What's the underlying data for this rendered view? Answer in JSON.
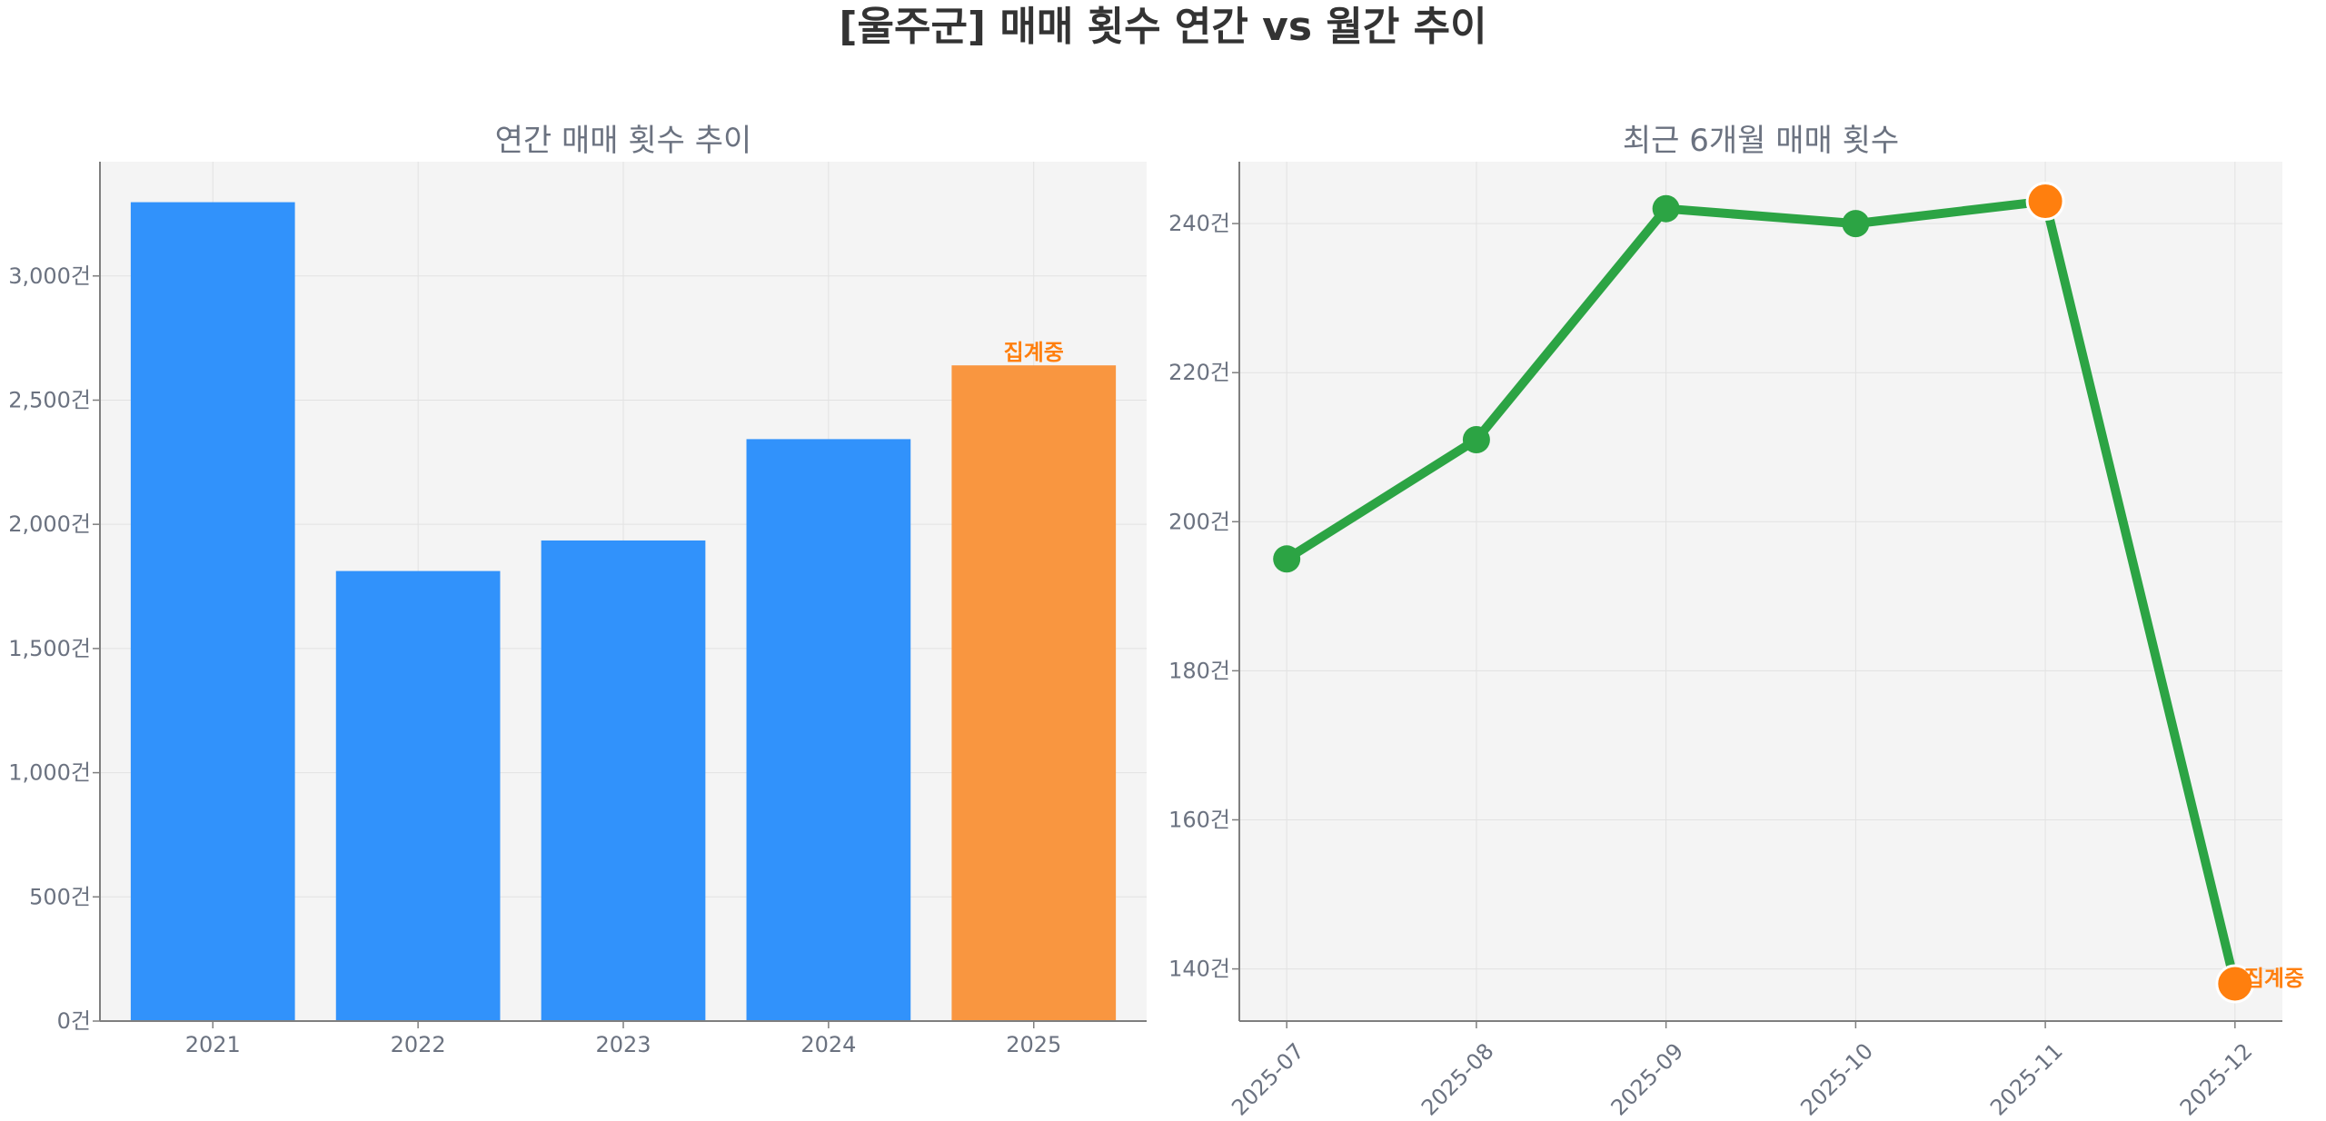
{
  "title": "[울주군] 매매 횟수 연간 vs 월간 추이",
  "colors": {
    "bar": "#3192fb",
    "bar_highlight": "#f99640",
    "line": "#2ca444",
    "marker_highlight": "#ff7f0e",
    "annotation": "#ff7f0e",
    "plot_bg": "#f4f4f4",
    "grid": "#e2e2e2",
    "axis": "#7f7f7f",
    "text": "#6b7280"
  },
  "chart_data": [
    {
      "type": "bar",
      "title": "연간 매매 횟수 추이",
      "categories": [
        "2021",
        "2022",
        "2023",
        "2024",
        "2025"
      ],
      "values": [
        3297,
        1812,
        1935,
        2343,
        2640
      ],
      "highlight_index": 4,
      "annotation": "집계중",
      "ylim": [
        0,
        3460
      ],
      "yticks": [
        0,
        500,
        1000,
        1500,
        2000,
        2500,
        3000
      ],
      "ytick_labels": [
        "0건",
        "500건",
        "1,000건",
        "1,500건",
        "2,000건",
        "2,500건",
        "3,000건"
      ],
      "grid": true
    },
    {
      "type": "line",
      "title": "최근 6개월 매매 횟수",
      "categories": [
        "2025-07",
        "2025-08",
        "2025-09",
        "2025-10",
        "2025-11",
        "2025-12"
      ],
      "values": [
        195,
        211,
        242,
        240,
        243,
        138
      ],
      "highlight_indices": [
        4,
        5
      ],
      "annotation": "집계중",
      "ylim": [
        133,
        248.3
      ],
      "yticks": [
        140,
        160,
        180,
        200,
        220,
        240
      ],
      "ytick_labels": [
        "140건",
        "160건",
        "180건",
        "200건",
        "220건",
        "240건"
      ],
      "grid": true
    }
  ]
}
